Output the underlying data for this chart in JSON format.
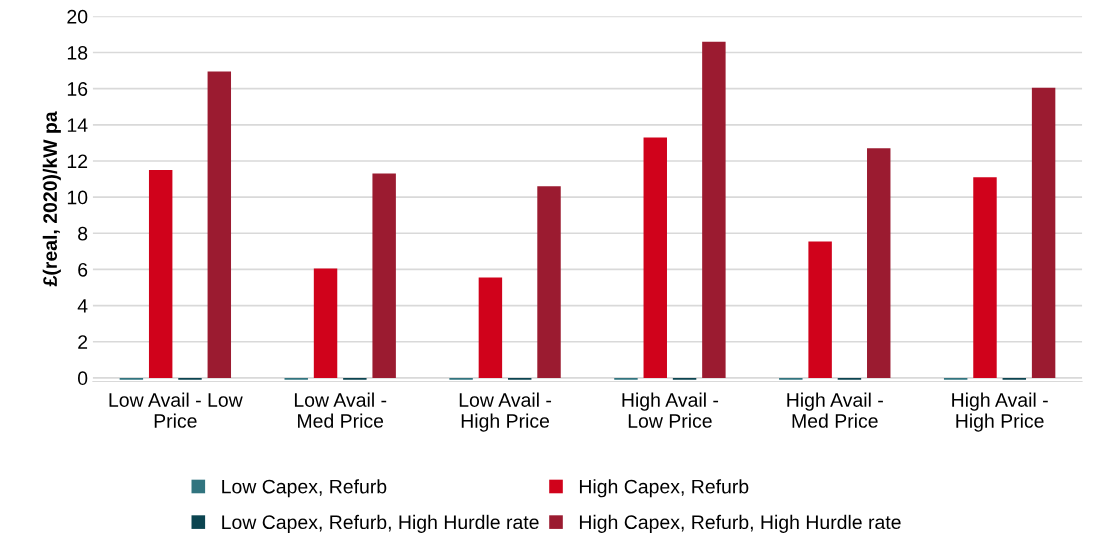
{
  "chart_data": {
    "type": "bar",
    "ylabel": "£(real, 2020)/kW pa",
    "categories": [
      "Low Avail - Low\nPrice",
      "Low Avail -\nMed Price",
      "Low Avail -\nHigh Price",
      "High Avail -\nLow Price",
      "High Avail -\nMed Price",
      "High Avail -\nHigh Price"
    ],
    "series": [
      {
        "name": "Low Capex, Refurb",
        "color": "#31747f",
        "values": [
          -0.1,
          -0.1,
          -0.1,
          -0.1,
          -0.1,
          -0.1
        ]
      },
      {
        "name": "High Capex, Refurb",
        "color": "#d0021b",
        "values": [
          11.5,
          6.05,
          5.55,
          13.3,
          7.55,
          11.1
        ]
      },
      {
        "name": "Low Capex, Refurb, High Hurdle rate",
        "color": "#0b4450",
        "values": [
          -0.1,
          -0.1,
          -0.1,
          -0.1,
          -0.1,
          -0.1
        ]
      },
      {
        "name": "High Capex, Refurb, High Hurdle rate",
        "color": "#9b1b30",
        "values": [
          16.95,
          11.3,
          10.6,
          18.6,
          12.7,
          16.05
        ]
      }
    ],
    "ylim": [
      -0.2,
      20
    ],
    "yticks": [
      0,
      2,
      4,
      6,
      8,
      10,
      12,
      14,
      16,
      18,
      20
    ],
    "grid": "y",
    "legend": "bottom"
  }
}
